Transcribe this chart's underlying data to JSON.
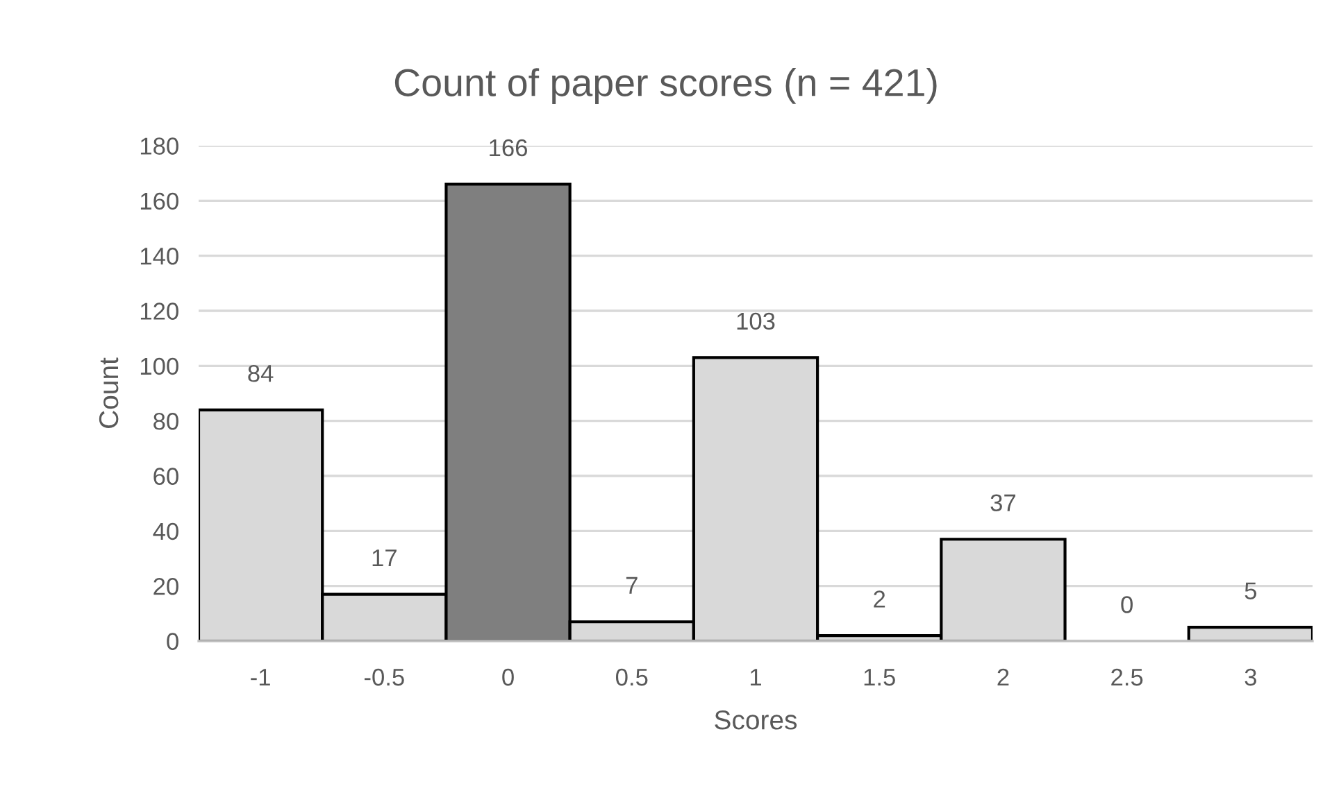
{
  "chart_data": {
    "type": "bar",
    "title": "Count of paper scores (n = 421)",
    "xlabel": "Scores",
    "ylabel": "Count",
    "categories": [
      "-1",
      "-0.5",
      "0",
      "0.5",
      "1",
      "1.5",
      "2",
      "2.5",
      "3"
    ],
    "values": [
      84,
      17,
      166,
      7,
      103,
      2,
      37,
      0,
      5
    ],
    "colors": [
      "#d9d9d9",
      "#d9d9d9",
      "#7f7f7f",
      "#d9d9d9",
      "#d9d9d9",
      "#d9d9d9",
      "#d9d9d9",
      "#d9d9d9",
      "#d9d9d9"
    ],
    "ylim": [
      0,
      180
    ],
    "yticks": [
      0,
      20,
      40,
      60,
      80,
      100,
      120,
      140,
      160,
      180
    ],
    "grid": "y",
    "data_labels": true
  }
}
